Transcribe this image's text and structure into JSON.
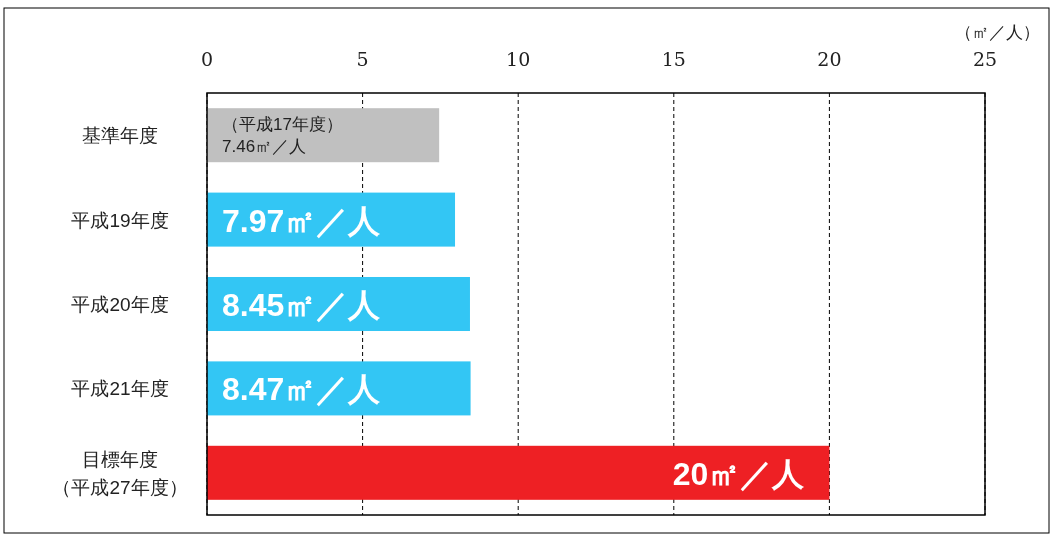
{
  "chart_data": {
    "type": "bar",
    "orientation": "horizontal",
    "xlabel": "（㎡／人）",
    "categories": [
      "基準年度",
      "平成19年度",
      "平成20年度",
      "平成21年度",
      "目標年度（平成27年度）"
    ],
    "values": [
      7.46,
      7.97,
      8.45,
      8.47,
      20
    ],
    "colors": [
      "#c0c0c0",
      "#33c6f4",
      "#33c6f4",
      "#33c6f4",
      "#ee2024"
    ],
    "value_labels": [
      "（平成17年度）\n7.46㎡／人",
      "7.97㎡／人",
      "8.45㎡／人",
      "8.47㎡／人",
      "20㎡／人"
    ],
    "xlim": [
      0,
      25
    ],
    "xticks": [
      0,
      5,
      10,
      15,
      20,
      25
    ],
    "grid": "x"
  }
}
